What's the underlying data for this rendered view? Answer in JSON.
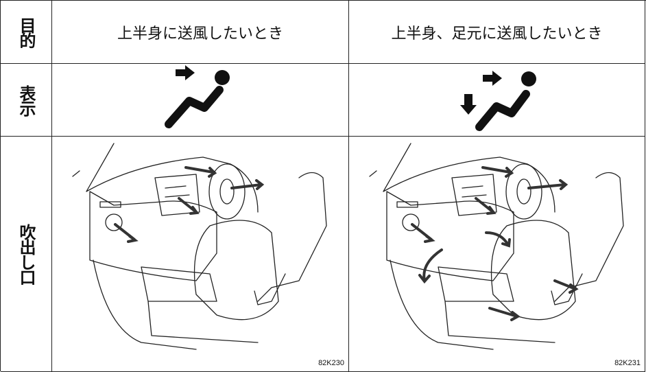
{
  "table": {
    "row_labels": [
      "目的",
      "表示",
      "吹出し口"
    ],
    "columns": [
      "上半身に送風したいとき",
      "上半身、足元に送風したいとき"
    ],
    "figure_codes": [
      "82K230",
      "82K231"
    ]
  }
}
